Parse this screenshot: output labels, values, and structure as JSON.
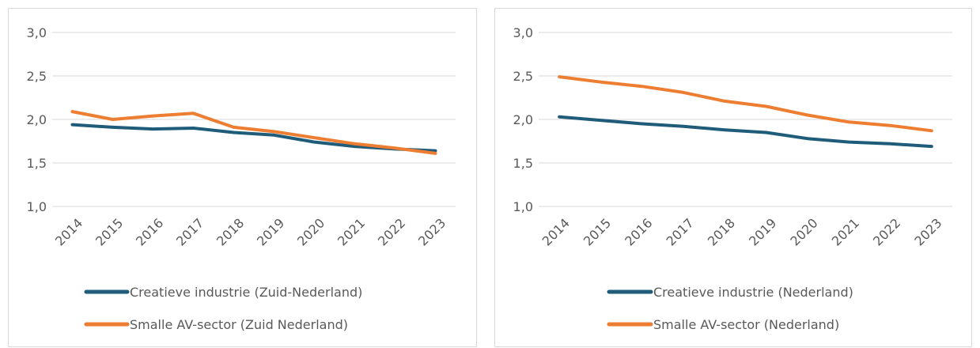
{
  "chart_data": [
    {
      "type": "line",
      "title": "",
      "xlabel": "",
      "ylabel": "",
      "ylim": [
        1.0,
        3.0
      ],
      "yticks": [
        "1,0",
        "1,5",
        "2,0",
        "2,5",
        "3,0"
      ],
      "categories": [
        "2014",
        "2015",
        "2016",
        "2017",
        "2018",
        "2019",
        "2020",
        "2021",
        "2022",
        "2023"
      ],
      "grid": true,
      "legend_position": "bottom",
      "series": [
        {
          "name": "Creatieve industrie (Zuid-Nederland)",
          "color": "#1f5c7a",
          "values": [
            1.94,
            1.91,
            1.89,
            1.9,
            1.85,
            1.82,
            1.74,
            1.69,
            1.66,
            1.64
          ]
        },
        {
          "name": "Smalle AV-sector (Zuid Nederland)",
          "color": "#ed7d31",
          "values": [
            2.09,
            2.0,
            2.04,
            2.07,
            1.91,
            1.86,
            1.79,
            1.72,
            1.67,
            1.61
          ]
        }
      ]
    },
    {
      "type": "line",
      "title": "",
      "xlabel": "",
      "ylabel": "",
      "ylim": [
        1.0,
        3.0
      ],
      "yticks": [
        "1,0",
        "1,5",
        "2,0",
        "2,5",
        "3,0"
      ],
      "categories": [
        "2014",
        "2015",
        "2016",
        "2017",
        "2018",
        "2019",
        "2020",
        "2021",
        "2022",
        "2023"
      ],
      "grid": true,
      "legend_position": "bottom",
      "series": [
        {
          "name": "Creatieve industrie (Nederland)",
          "color": "#1f5c7a",
          "values": [
            2.03,
            1.99,
            1.95,
            1.92,
            1.88,
            1.85,
            1.78,
            1.74,
            1.72,
            1.69
          ]
        },
        {
          "name": "Smalle AV-sector (Nederland)",
          "color": "#ed7d31",
          "values": [
            2.49,
            2.43,
            2.38,
            2.31,
            2.21,
            2.15,
            2.05,
            1.97,
            1.93,
            1.87
          ]
        }
      ]
    }
  ]
}
